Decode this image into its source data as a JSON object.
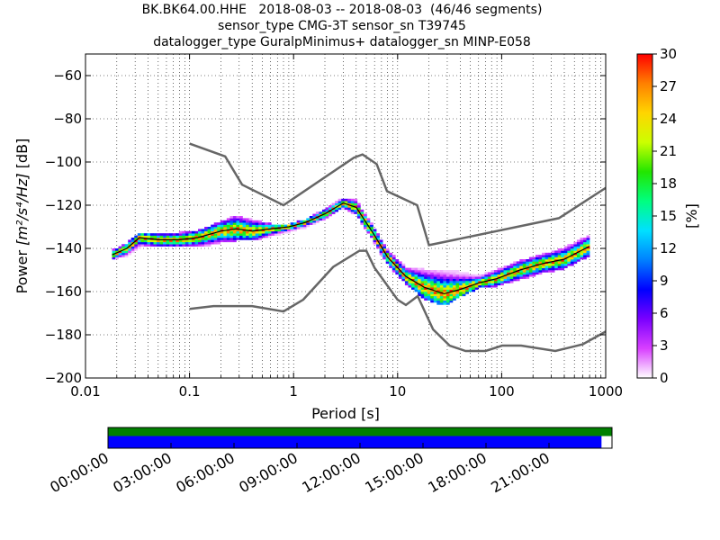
{
  "figure": {
    "title_lines": [
      "BK.BK64.00.HHE   2018-08-03 -- 2018-08-03  (46/46 segments)",
      "sensor_type CMG-3T sensor_sn T39745",
      "datalogger_type GuralpMinimus+ datalogger_sn MINP-E058"
    ]
  },
  "chart_data": [
    {
      "type": "heatmap",
      "xlabel": "Period [s]",
      "ylabel_prefix": "Power ",
      "ylabel_math": "[m²/s⁴/Hz]",
      "ylabel_suffix": " [dB]",
      "xscale": "log",
      "xlim": [
        0.01,
        1000
      ],
      "ylim": [
        -200,
        -50
      ],
      "x_ticks": [
        0.01,
        0.1,
        1,
        10,
        100,
        1000
      ],
      "x_tick_labels": [
        "0.01",
        "0.1",
        "1",
        "10",
        "100",
        "1000"
      ],
      "y_ticks": [
        -200,
        -180,
        -160,
        -140,
        -120,
        -100,
        -80,
        -60
      ],
      "y_tick_labels": [
        "−200",
        "−180",
        "−160",
        "−140",
        "−120",
        "−100",
        "−80",
        "−60"
      ],
      "grid": true,
      "colorbar": {
        "label": "[%]",
        "min": 0,
        "max": 30,
        "ticks": [
          0,
          3,
          6,
          9,
          12,
          15,
          18,
          21,
          24,
          27,
          30
        ],
        "colormap": [
          "#ffffff",
          "#d83fff",
          "#7a00ff",
          "#0000ff",
          "#0080ff",
          "#00e0ff",
          "#00ff80",
          "#22e600",
          "#ccff00",
          "#ffd500",
          "#ff8000",
          "#ff0000"
        ]
      },
      "noise_models": {
        "color": "#666666",
        "high_model": {
          "x": [
            0.1,
            0.22,
            0.32,
            0.8,
            3.8,
            4.6,
            6.3,
            7.9,
            15.4,
            20,
            354.8,
            1000
          ],
          "y": [
            -91.5,
            -97.4,
            -110.5,
            -120,
            -98,
            -96.5,
            -101,
            -113.5,
            -120,
            -138.5,
            -126,
            -112
          ]
        },
        "low_model": {
          "x": [
            0.1,
            0.17,
            0.4,
            0.8,
            1.24,
            2.4,
            4.3,
            5,
            6,
            10,
            12,
            15.6,
            21.9,
            31.6,
            45,
            70,
            101,
            154,
            328,
            600,
            1000
          ],
          "y": [
            -168,
            -166.7,
            -166.7,
            -169.2,
            -163.7,
            -148.6,
            -141.1,
            -141.1,
            -149,
            -163.8,
            -166.2,
            -162.1,
            -177.5,
            -185,
            -187.5,
            -187.5,
            -185,
            -185,
            -187.5,
            -184.4,
            -178.5
          ]
        }
      },
      "series": [
        {
          "name": "psd_envelope_top",
          "x": [
            0.018,
            0.025,
            0.033,
            0.05,
            0.08,
            0.12,
            0.2,
            0.28,
            0.4,
            0.6,
            0.9,
            1.3,
            2.0,
            3.0,
            4.0,
            6.0,
            8.0,
            12.0,
            18.0,
            28.0,
            40.0,
            60.0,
            90.0,
            150.0,
            250.0,
            400.0,
            700.0
          ],
          "y": [
            -141,
            -138,
            -133,
            -133,
            -133,
            -132,
            -128,
            -125,
            -127,
            -129,
            -129,
            -127,
            -122,
            -117,
            -118,
            -131,
            -141,
            -149,
            -150,
            -150,
            -151,
            -153,
            -150,
            -146,
            -143,
            -140,
            -134
          ]
        },
        {
          "name": "psd_envelope_bottom",
          "x": [
            0.018,
            0.025,
            0.033,
            0.05,
            0.08,
            0.12,
            0.2,
            0.28,
            0.4,
            0.6,
            0.9,
            1.3,
            2.0,
            3.0,
            4.0,
            6.0,
            8.0,
            12.0,
            18.0,
            28.0,
            40.0,
            60.0,
            90.0,
            150.0,
            250.0,
            400.0,
            700.0
          ],
          "y": [
            -145,
            -143,
            -139,
            -139,
            -139,
            -139,
            -137,
            -136,
            -136,
            -134,
            -132,
            -130,
            -126,
            -121,
            -124,
            -137,
            -147,
            -156,
            -163,
            -166,
            -162,
            -158,
            -157,
            -154,
            -151,
            -149,
            -143
          ]
        },
        {
          "name": "psd_mode",
          "x": [
            0.018,
            0.025,
            0.033,
            0.05,
            0.08,
            0.12,
            0.2,
            0.28,
            0.4,
            0.6,
            0.9,
            1.3,
            2.0,
            3.0,
            4.0,
            6.0,
            8.0,
            12.0,
            18.0,
            28.0,
            40.0,
            60.0,
            90.0,
            150.0,
            250.0,
            400.0,
            700.0
          ],
          "y": [
            -143,
            -140,
            -135,
            -136,
            -136,
            -135,
            -132,
            -131,
            -132,
            -131,
            -130,
            -128,
            -124,
            -119,
            -121,
            -134,
            -144,
            -153,
            -158,
            -161,
            -159,
            -156,
            -154,
            -150,
            -147,
            -145,
            -139
          ]
        }
      ]
    },
    {
      "type": "bar",
      "name": "data_availability",
      "xlim_hours": [
        0,
        24
      ],
      "tick_hours": [
        0,
        3,
        6,
        9,
        12,
        15,
        18,
        21
      ],
      "tick_labels": [
        "00:00:00",
        "03:00:00",
        "06:00:00",
        "09:00:00",
        "12:00:00",
        "15:00:00",
        "18:00:00",
        "21:00:00"
      ],
      "segments": [
        {
          "what": "data",
          "color": "#008000",
          "start_hour": 0,
          "end_hour": 24
        },
        {
          "what": "used_psd",
          "color": "#0000ff",
          "start_hour": 0,
          "end_hour": 23.5
        }
      ]
    }
  ]
}
